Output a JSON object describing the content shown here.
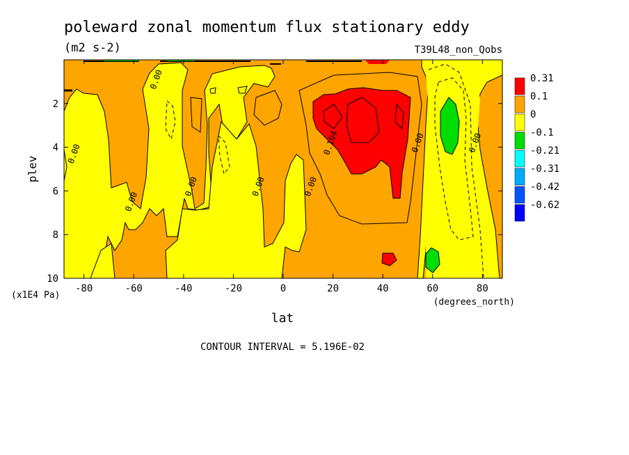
{
  "chart_data": {
    "type": "heatmap",
    "title": "poleward zonal momentum flux stationary eddy",
    "units": "(m2 s-2)",
    "run_label": "T39L48_non_Qobs",
    "xlabel": "lat",
    "x_units": "(degrees_north)",
    "ylabel": "plev",
    "y_units": "(x1E4 Pa)",
    "xlim": [
      -88,
      88
    ],
    "ylim": [
      10,
      0
    ],
    "x_ticks": [
      -80,
      -60,
      -40,
      -20,
      0,
      20,
      40,
      60,
      80
    ],
    "x_tick_labels": [
      "-80",
      "-60",
      "-40",
      "-20",
      "0",
      "20",
      "40",
      "60",
      "80"
    ],
    "y_ticks": [
      2,
      4,
      6,
      8,
      10
    ],
    "y_tick_labels": [
      "2",
      "4",
      "6",
      "8",
      "10"
    ],
    "contour_interval_text": "CONTOUR INTERVAL = 5.196E-02",
    "contour_labels": [
      {
        "text": "0.00",
        "lat": -51,
        "plev": 0.9
      },
      {
        "text": "0.00",
        "lat": -84,
        "plev": 4.3
      },
      {
        "text": "0.00",
        "lat": -61,
        "plev": 6.5
      },
      {
        "text": "0.00",
        "lat": -37,
        "plev": 5.8
      },
      {
        "text": "0.00",
        "lat": -10,
        "plev": 5.8
      },
      {
        "text": "0.00",
        "lat": 11,
        "plev": 5.8
      },
      {
        "text": "0.104",
        "lat": 19,
        "plev": 3.8
      },
      {
        "text": "0.00",
        "lat": 54,
        "plev": 3.8
      },
      {
        "text": "0.00",
        "lat": 77,
        "plev": 3.8
      }
    ],
    "legend": {
      "placement": "right",
      "bins": [
        {
          "label": "0.31",
          "color": "#ff0000"
        },
        {
          "label": "0.1",
          "color": "#ffa500"
        },
        {
          "label": "0",
          "color": "#ffff00"
        },
        {
          "label": "-0.1",
          "color": "#00dd00"
        },
        {
          "label": "-0.21",
          "color": "#00ffff"
        },
        {
          "label": "-0.31",
          "color": "#00aaff"
        },
        {
          "label": "-0.42",
          "color": "#0055ff"
        },
        {
          "label": "-0.62",
          "color": "#0000ff"
        }
      ]
    },
    "regions": [
      {
        "level": "0",
        "lat": [
          -88,
          -84
        ],
        "plev": [
          0,
          10
        ]
      },
      {
        "level": "0.1",
        "lat": [
          -70,
          -56
        ],
        "plev": [
          0,
          7
        ]
      },
      {
        "level": "0.1",
        "lat": [
          -42,
          -32
        ],
        "plev": [
          0,
          6.5
        ]
      },
      {
        "level": "0.1",
        "lat": [
          -10,
          14
        ],
        "plev": [
          0,
          4.5
        ]
      },
      {
        "level": "0.31",
        "lat": [
          12,
          52
        ],
        "plev": [
          1.4,
          6.3
        ]
      },
      {
        "level": "0.31",
        "lat": [
          38,
          45
        ],
        "plev": [
          8.8,
          9.5
        ]
      },
      {
        "level": "0",
        "lat": [
          56,
          80
        ],
        "plev": [
          0,
          10
        ]
      },
      {
        "level": "-0.1",
        "lat": [
          62,
          71
        ],
        "plev": [
          1.8,
          4.8
        ]
      },
      {
        "level": "-0.1",
        "lat": [
          57,
          64
        ],
        "plev": [
          8.6,
          9.7
        ]
      }
    ]
  },
  "colors": {
    "yellow": "#ffff00",
    "orange": "#ffa500",
    "red": "#ff0000",
    "green": "#00dd00"
  }
}
